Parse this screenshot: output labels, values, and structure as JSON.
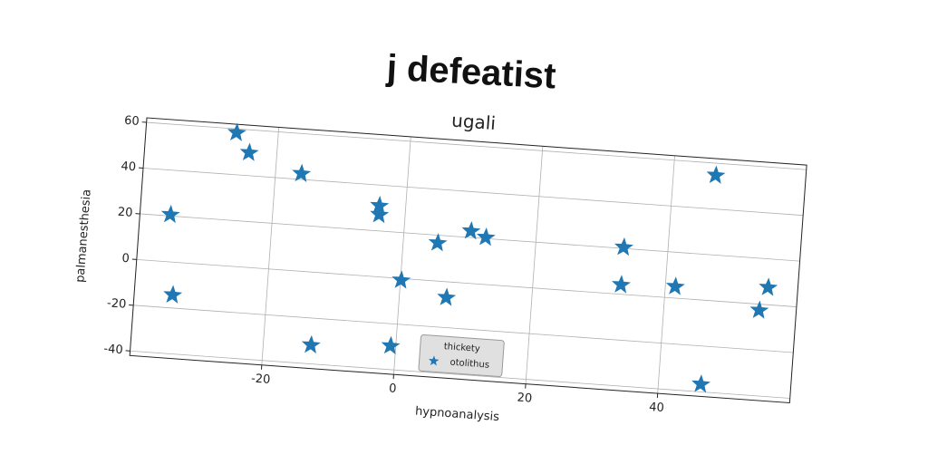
{
  "chart_data": {
    "type": "scatter",
    "title": "j defeatist",
    "subtitle": "ugali",
    "x_label": "hypnoanalysis",
    "y_label": "palmanesthesia",
    "legend_title": "thickety",
    "legend_loc": "lower center",
    "grid": true,
    "series": [
      {
        "name": "otolithus",
        "color": "#1f77b4",
        "marker": "star",
        "x": [
          -26.3,
          -24.2,
          -16.1,
          -35.4,
          -34.2,
          -4.0,
          -3.9,
          0.1,
          5.2,
          10.1,
          12.4,
          7.1,
          -12.8,
          -0.8,
          33.3,
          33.3,
          41.5,
          46.4,
          55.5,
          54.4,
          46.4
        ],
        "y": [
          58.3,
          50.0,
          42.5,
          20.6,
          -14.3,
          31.0,
          27.1,
          -0.8,
          16.6,
          22.8,
          20.5,
          -6.9,
          -31.8,
          -29.7,
          20.5,
          4.1,
          5.0,
          54.7,
          7.5,
          -2.7,
          -36.7
        ]
      }
    ],
    "xlim": [
      -40,
      60
    ],
    "ylim": [
      -42,
      62
    ],
    "xticks": [
      -20,
      0,
      20,
      40
    ],
    "yticks": [
      -40,
      -20,
      0,
      20,
      40,
      60
    ]
  }
}
